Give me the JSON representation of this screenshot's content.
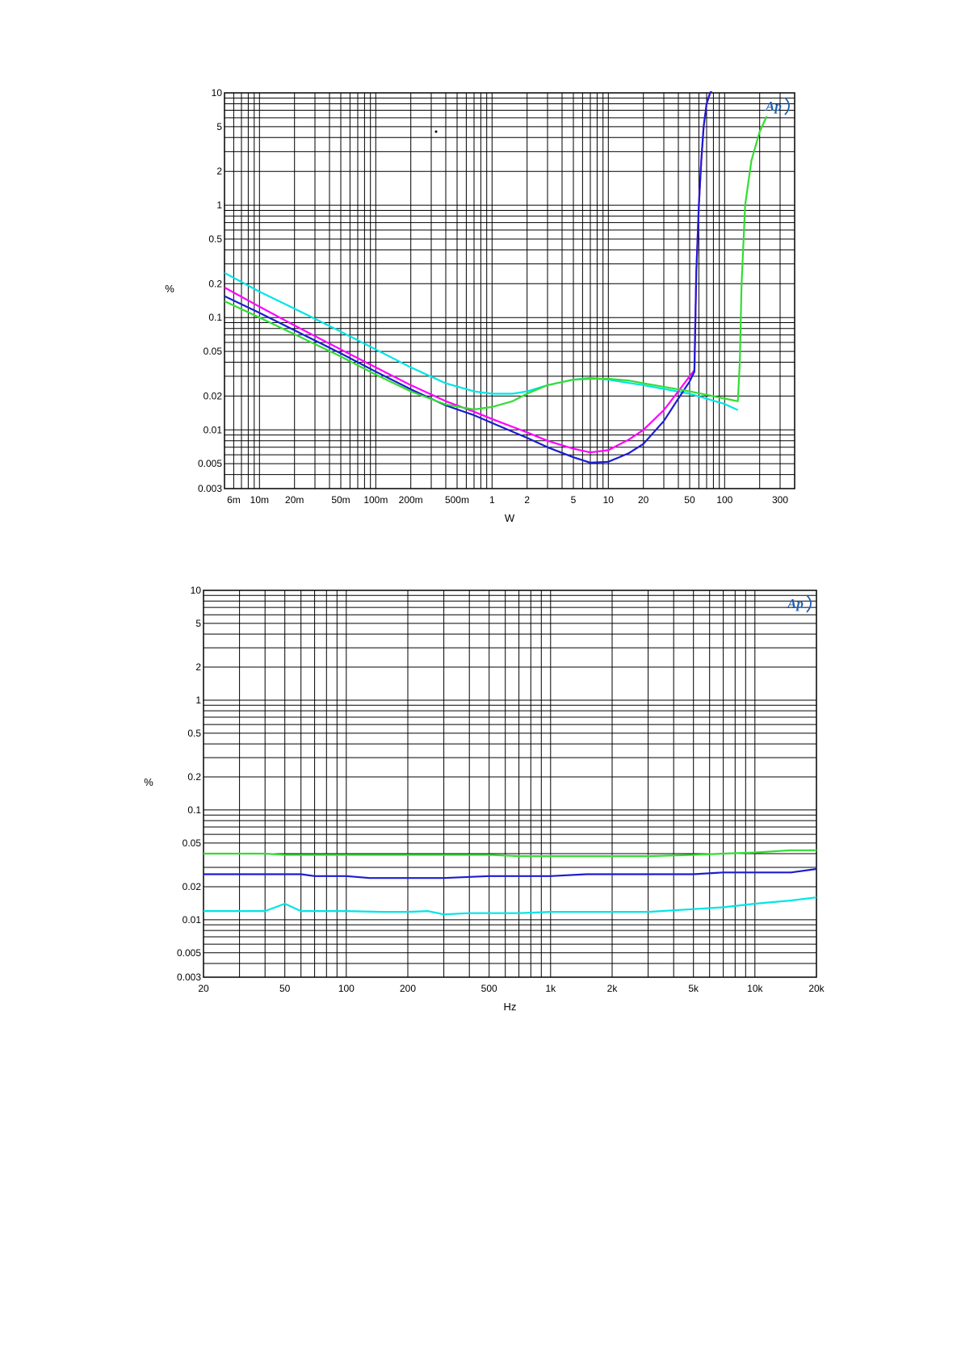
{
  "chart_data": [
    {
      "type": "line",
      "x_scale": "log",
      "y_scale": "log",
      "xlabel": "W",
      "ylabel": "%",
      "xlim": [
        0.005,
        400
      ],
      "ylim": [
        0.003,
        10
      ],
      "grid": true,
      "logo": "Ap",
      "x_ticks": [
        {
          "v": 0.006,
          "label": "6m"
        },
        {
          "v": 0.01,
          "label": "10m"
        },
        {
          "v": 0.02,
          "label": "20m"
        },
        {
          "v": 0.05,
          "label": "50m"
        },
        {
          "v": 0.1,
          "label": "100m"
        },
        {
          "v": 0.2,
          "label": "200m"
        },
        {
          "v": 0.5,
          "label": "500m"
        },
        {
          "v": 1,
          "label": "1"
        },
        {
          "v": 2,
          "label": "2"
        },
        {
          "v": 5,
          "label": "5"
        },
        {
          "v": 10,
          "label": "10"
        },
        {
          "v": 20,
          "label": "20"
        },
        {
          "v": 50,
          "label": "50"
        },
        {
          "v": 100,
          "label": "100"
        },
        {
          "v": 300,
          "label": "300"
        }
      ],
      "y_ticks": [
        {
          "v": 0.003,
          "label": "0.003"
        },
        {
          "v": 0.005,
          "label": "0.005"
        },
        {
          "v": 0.01,
          "label": "0.01"
        },
        {
          "v": 0.02,
          "label": "0.02"
        },
        {
          "v": 0.05,
          "label": "0.05"
        },
        {
          "v": 0.1,
          "label": "0.1"
        },
        {
          "v": 0.2,
          "label": "0.2"
        },
        {
          "v": 0.5,
          "label": "0.5"
        },
        {
          "v": 1,
          "label": "1"
        },
        {
          "v": 2,
          "label": "2"
        },
        {
          "v": 5,
          "label": "5"
        },
        {
          "v": 10,
          "label": "10"
        }
      ],
      "series": [
        {
          "color": "#00e5e5",
          "x": [
            0.005,
            0.01,
            0.02,
            0.05,
            0.1,
            0.2,
            0.4,
            0.7,
            1,
            1.5,
            2,
            3,
            5,
            7,
            10,
            20,
            50,
            100,
            130
          ],
          "y": [
            0.25,
            0.17,
            0.12,
            0.075,
            0.052,
            0.036,
            0.026,
            0.022,
            0.021,
            0.021,
            0.022,
            0.025,
            0.028,
            0.029,
            0.028,
            0.025,
            0.021,
            0.017,
            0.015
          ]
        },
        {
          "color": "#ff00ff",
          "x": [
            0.005,
            0.01,
            0.02,
            0.05,
            0.1,
            0.2,
            0.4,
            0.7,
            1,
            2,
            3,
            5,
            7,
            10,
            15,
            20,
            30,
            40,
            50,
            55,
            57,
            60,
            63,
            66,
            70,
            75,
            80
          ],
          "y": [
            0.185,
            0.125,
            0.085,
            0.052,
            0.036,
            0.025,
            0.018,
            0.0145,
            0.0125,
            0.0095,
            0.008,
            0.0068,
            0.0063,
            0.0066,
            0.0082,
            0.01,
            0.015,
            0.022,
            0.03,
            0.034,
            0.25,
            1.0,
            2.5,
            5.0,
            8.0,
            10,
            11
          ]
        },
        {
          "color": "#1c1cd0",
          "x": [
            0.005,
            0.01,
            0.02,
            0.05,
            0.1,
            0.2,
            0.4,
            0.7,
            1,
            2,
            3,
            5,
            7,
            10,
            15,
            20,
            30,
            40,
            50,
            55,
            57,
            60,
            63,
            66,
            70,
            75,
            80
          ],
          "y": [
            0.155,
            0.11,
            0.077,
            0.048,
            0.033,
            0.023,
            0.0165,
            0.0135,
            0.0115,
            0.0085,
            0.007,
            0.0057,
            0.0051,
            0.0052,
            0.0062,
            0.0075,
            0.012,
            0.019,
            0.027,
            0.033,
            0.25,
            1.0,
            2.5,
            5.0,
            8.0,
            10,
            11
          ]
        },
        {
          "color": "#33dd33",
          "x": [
            0.005,
            0.01,
            0.02,
            0.05,
            0.1,
            0.2,
            0.4,
            0.7,
            1,
            1.5,
            2,
            3,
            5,
            7,
            10,
            15,
            20,
            50,
            100,
            130,
            135,
            140,
            150,
            170,
            200,
            230
          ],
          "y": [
            0.14,
            0.1,
            0.071,
            0.045,
            0.031,
            0.022,
            0.0168,
            0.0152,
            0.016,
            0.018,
            0.021,
            0.025,
            0.028,
            0.0285,
            0.0285,
            0.0275,
            0.026,
            0.022,
            0.019,
            0.018,
            0.04,
            0.2,
            1.0,
            2.5,
            4.5,
            6.2
          ]
        }
      ]
    },
    {
      "type": "line",
      "x_scale": "log",
      "y_scale": "log",
      "xlabel": "Hz",
      "ylabel": "%",
      "xlim": [
        20,
        20000
      ],
      "ylim": [
        0.003,
        10
      ],
      "grid": true,
      "logo": "Ap",
      "x_ticks": [
        {
          "v": 20,
          "label": "20"
        },
        {
          "v": 50,
          "label": "50"
        },
        {
          "v": 100,
          "label": "100"
        },
        {
          "v": 200,
          "label": "200"
        },
        {
          "v": 500,
          "label": "500"
        },
        {
          "v": 1000,
          "label": "1k"
        },
        {
          "v": 2000,
          "label": "2k"
        },
        {
          "v": 5000,
          "label": "5k"
        },
        {
          "v": 10000,
          "label": "10k"
        },
        {
          "v": 20000,
          "label": "20k"
        }
      ],
      "y_ticks": [
        {
          "v": 0.003,
          "label": "0.003"
        },
        {
          "v": 0.005,
          "label": "0.005"
        },
        {
          "v": 0.01,
          "label": "0.01"
        },
        {
          "v": 0.02,
          "label": "0.02"
        },
        {
          "v": 0.05,
          "label": "0.05"
        },
        {
          "v": 0.1,
          "label": "0.1"
        },
        {
          "v": 0.2,
          "label": "0.2"
        },
        {
          "v": 0.5,
          "label": "0.5"
        },
        {
          "v": 1,
          "label": "1"
        },
        {
          "v": 2,
          "label": "2"
        },
        {
          "v": 5,
          "label": "5"
        },
        {
          "v": 10,
          "label": "10"
        }
      ],
      "series": [
        {
          "color": "#33dd33",
          "x": [
            20,
            30,
            40,
            50,
            70,
            100,
            200,
            500,
            700,
            1000,
            2000,
            3000,
            5000,
            7000,
            10000,
            15000,
            20000
          ],
          "y": [
            0.04,
            0.04,
            0.04,
            0.039,
            0.039,
            0.039,
            0.039,
            0.039,
            0.038,
            0.038,
            0.038,
            0.038,
            0.039,
            0.04,
            0.041,
            0.043,
            0.043
          ]
        },
        {
          "color": "#1c1cd0",
          "x": [
            20,
            30,
            40,
            50,
            60,
            70,
            100,
            130,
            200,
            300,
            500,
            700,
            1000,
            1500,
            2000,
            3000,
            5000,
            7000,
            10000,
            15000,
            20000
          ],
          "y": [
            0.026,
            0.026,
            0.026,
            0.026,
            0.026,
            0.025,
            0.025,
            0.024,
            0.024,
            0.024,
            0.025,
            0.025,
            0.025,
            0.026,
            0.026,
            0.026,
            0.026,
            0.027,
            0.027,
            0.027,
            0.029
          ]
        },
        {
          "color": "#00e5e5",
          "x": [
            20,
            30,
            40,
            45,
            50,
            60,
            100,
            150,
            200,
            250,
            300,
            400,
            500,
            700,
            1000,
            2000,
            3000,
            5000,
            7000,
            10000,
            15000,
            20000
          ],
          "y": [
            0.012,
            0.012,
            0.012,
            0.013,
            0.014,
            0.012,
            0.012,
            0.0118,
            0.0118,
            0.012,
            0.0112,
            0.0115,
            0.0115,
            0.0115,
            0.0118,
            0.0118,
            0.0118,
            0.0125,
            0.013,
            0.014,
            0.015,
            0.016
          ]
        }
      ]
    }
  ]
}
